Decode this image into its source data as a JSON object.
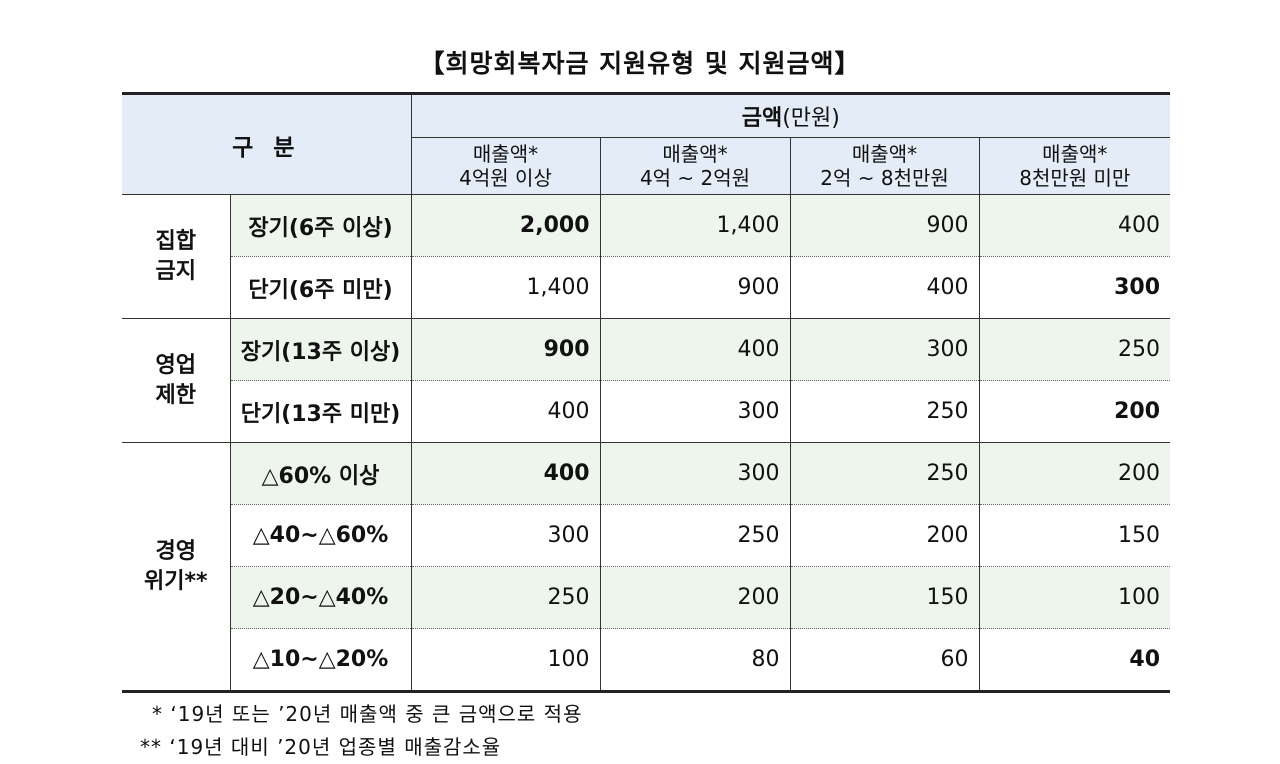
{
  "title": "【희망회복자금 지원유형 및 지원금액】",
  "header": {
    "category": "구 분",
    "amount_label": "금액",
    "amount_unit": "(만원)",
    "columns": [
      {
        "line1": "매출액*",
        "line2": "4억원 이상"
      },
      {
        "line1": "매출액*",
        "line2": "4억 ~ 2억원"
      },
      {
        "line1": "매출액*",
        "line2": "2억 ~ 8천만원"
      },
      {
        "line1": "매출액*",
        "line2": "8천만원 미만"
      }
    ]
  },
  "groups": [
    {
      "name_l1": "집합",
      "name_l2": "금지",
      "rows": [
        {
          "label": "장기(6주 이상)",
          "values": [
            "2,000",
            "1,400",
            "900",
            "400"
          ],
          "bold": [
            0
          ]
        },
        {
          "label": "단기(6주 미만)",
          "values": [
            "1,400",
            "900",
            "400",
            "300"
          ],
          "bold": [
            3
          ]
        }
      ]
    },
    {
      "name_l1": "영업",
      "name_l2": "제한",
      "rows": [
        {
          "label": "장기(13주 이상)",
          "values": [
            "900",
            "400",
            "300",
            "250"
          ],
          "bold": [
            0
          ]
        },
        {
          "label": "단기(13주 미만)",
          "values": [
            "400",
            "300",
            "250",
            "200"
          ],
          "bold": [
            3
          ]
        }
      ]
    },
    {
      "name_l1": "경영",
      "name_l2": "위기**",
      "rows": [
        {
          "label": "△60% 이상",
          "values": [
            "400",
            "300",
            "250",
            "200"
          ],
          "bold": [
            0
          ]
        },
        {
          "label": "△40~△60%",
          "values": [
            "300",
            "250",
            "200",
            "150"
          ],
          "bold": []
        },
        {
          "label": "△20~△40%",
          "values": [
            "250",
            "200",
            "150",
            "100"
          ],
          "bold": []
        },
        {
          "label": "△10~△20%",
          "values": [
            "100",
            "80",
            "60",
            "40"
          ],
          "bold": [
            3
          ]
        }
      ]
    }
  ],
  "footnotes": [
    "*  ‘19년 또는 ’20년 매출액 중 큰 금액으로 적용",
    "** ‘19년 대비 ’20년 업종별 매출감소율"
  ],
  "colors": {
    "header_bg": "#e4ecf7",
    "highlight_row_bg": "#eef5ec"
  }
}
